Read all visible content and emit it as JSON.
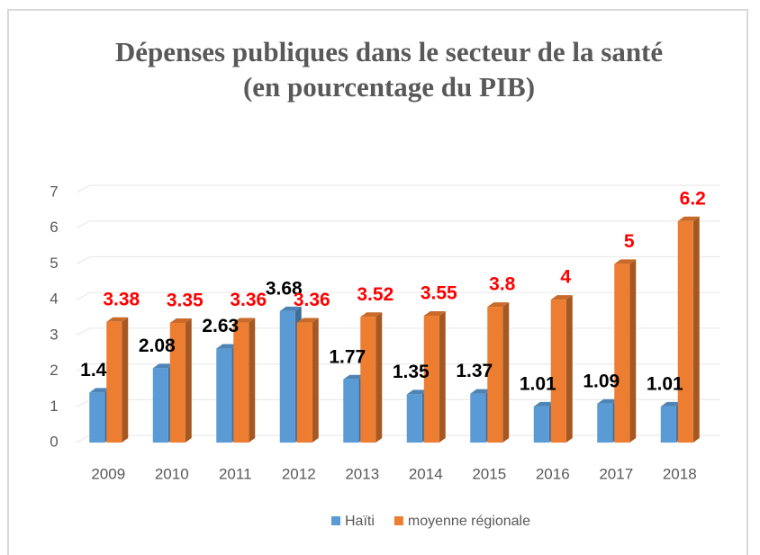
{
  "chart_data": {
    "type": "bar3d",
    "title": "Dépenses publiques dans le secteur de la santé",
    "subtitle": "(en pourcentage du PIB)",
    "categories": [
      "2009",
      "2010",
      "2011",
      "2012",
      "2013",
      "2014",
      "2015",
      "2016",
      "2017",
      "2018"
    ],
    "series": [
      {
        "name": "Haïti",
        "color": "#5b9bd5",
        "label_color": "#000000",
        "values": [
          1.4,
          2.08,
          2.63,
          3.68,
          1.77,
          1.35,
          1.37,
          1.01,
          1.09,
          1.01
        ]
      },
      {
        "name": "moyenne régionale",
        "color": "#ed7d31",
        "label_color": "#ff0000",
        "values": [
          3.38,
          3.35,
          3.36,
          3.36,
          3.52,
          3.55,
          3.8,
          4,
          5,
          6.2
        ]
      }
    ],
    "ylim": [
      0,
      7
    ],
    "yticks": [
      0,
      1,
      2,
      3,
      4,
      5,
      6,
      7
    ],
    "grid": true,
    "legend": "bottom"
  }
}
